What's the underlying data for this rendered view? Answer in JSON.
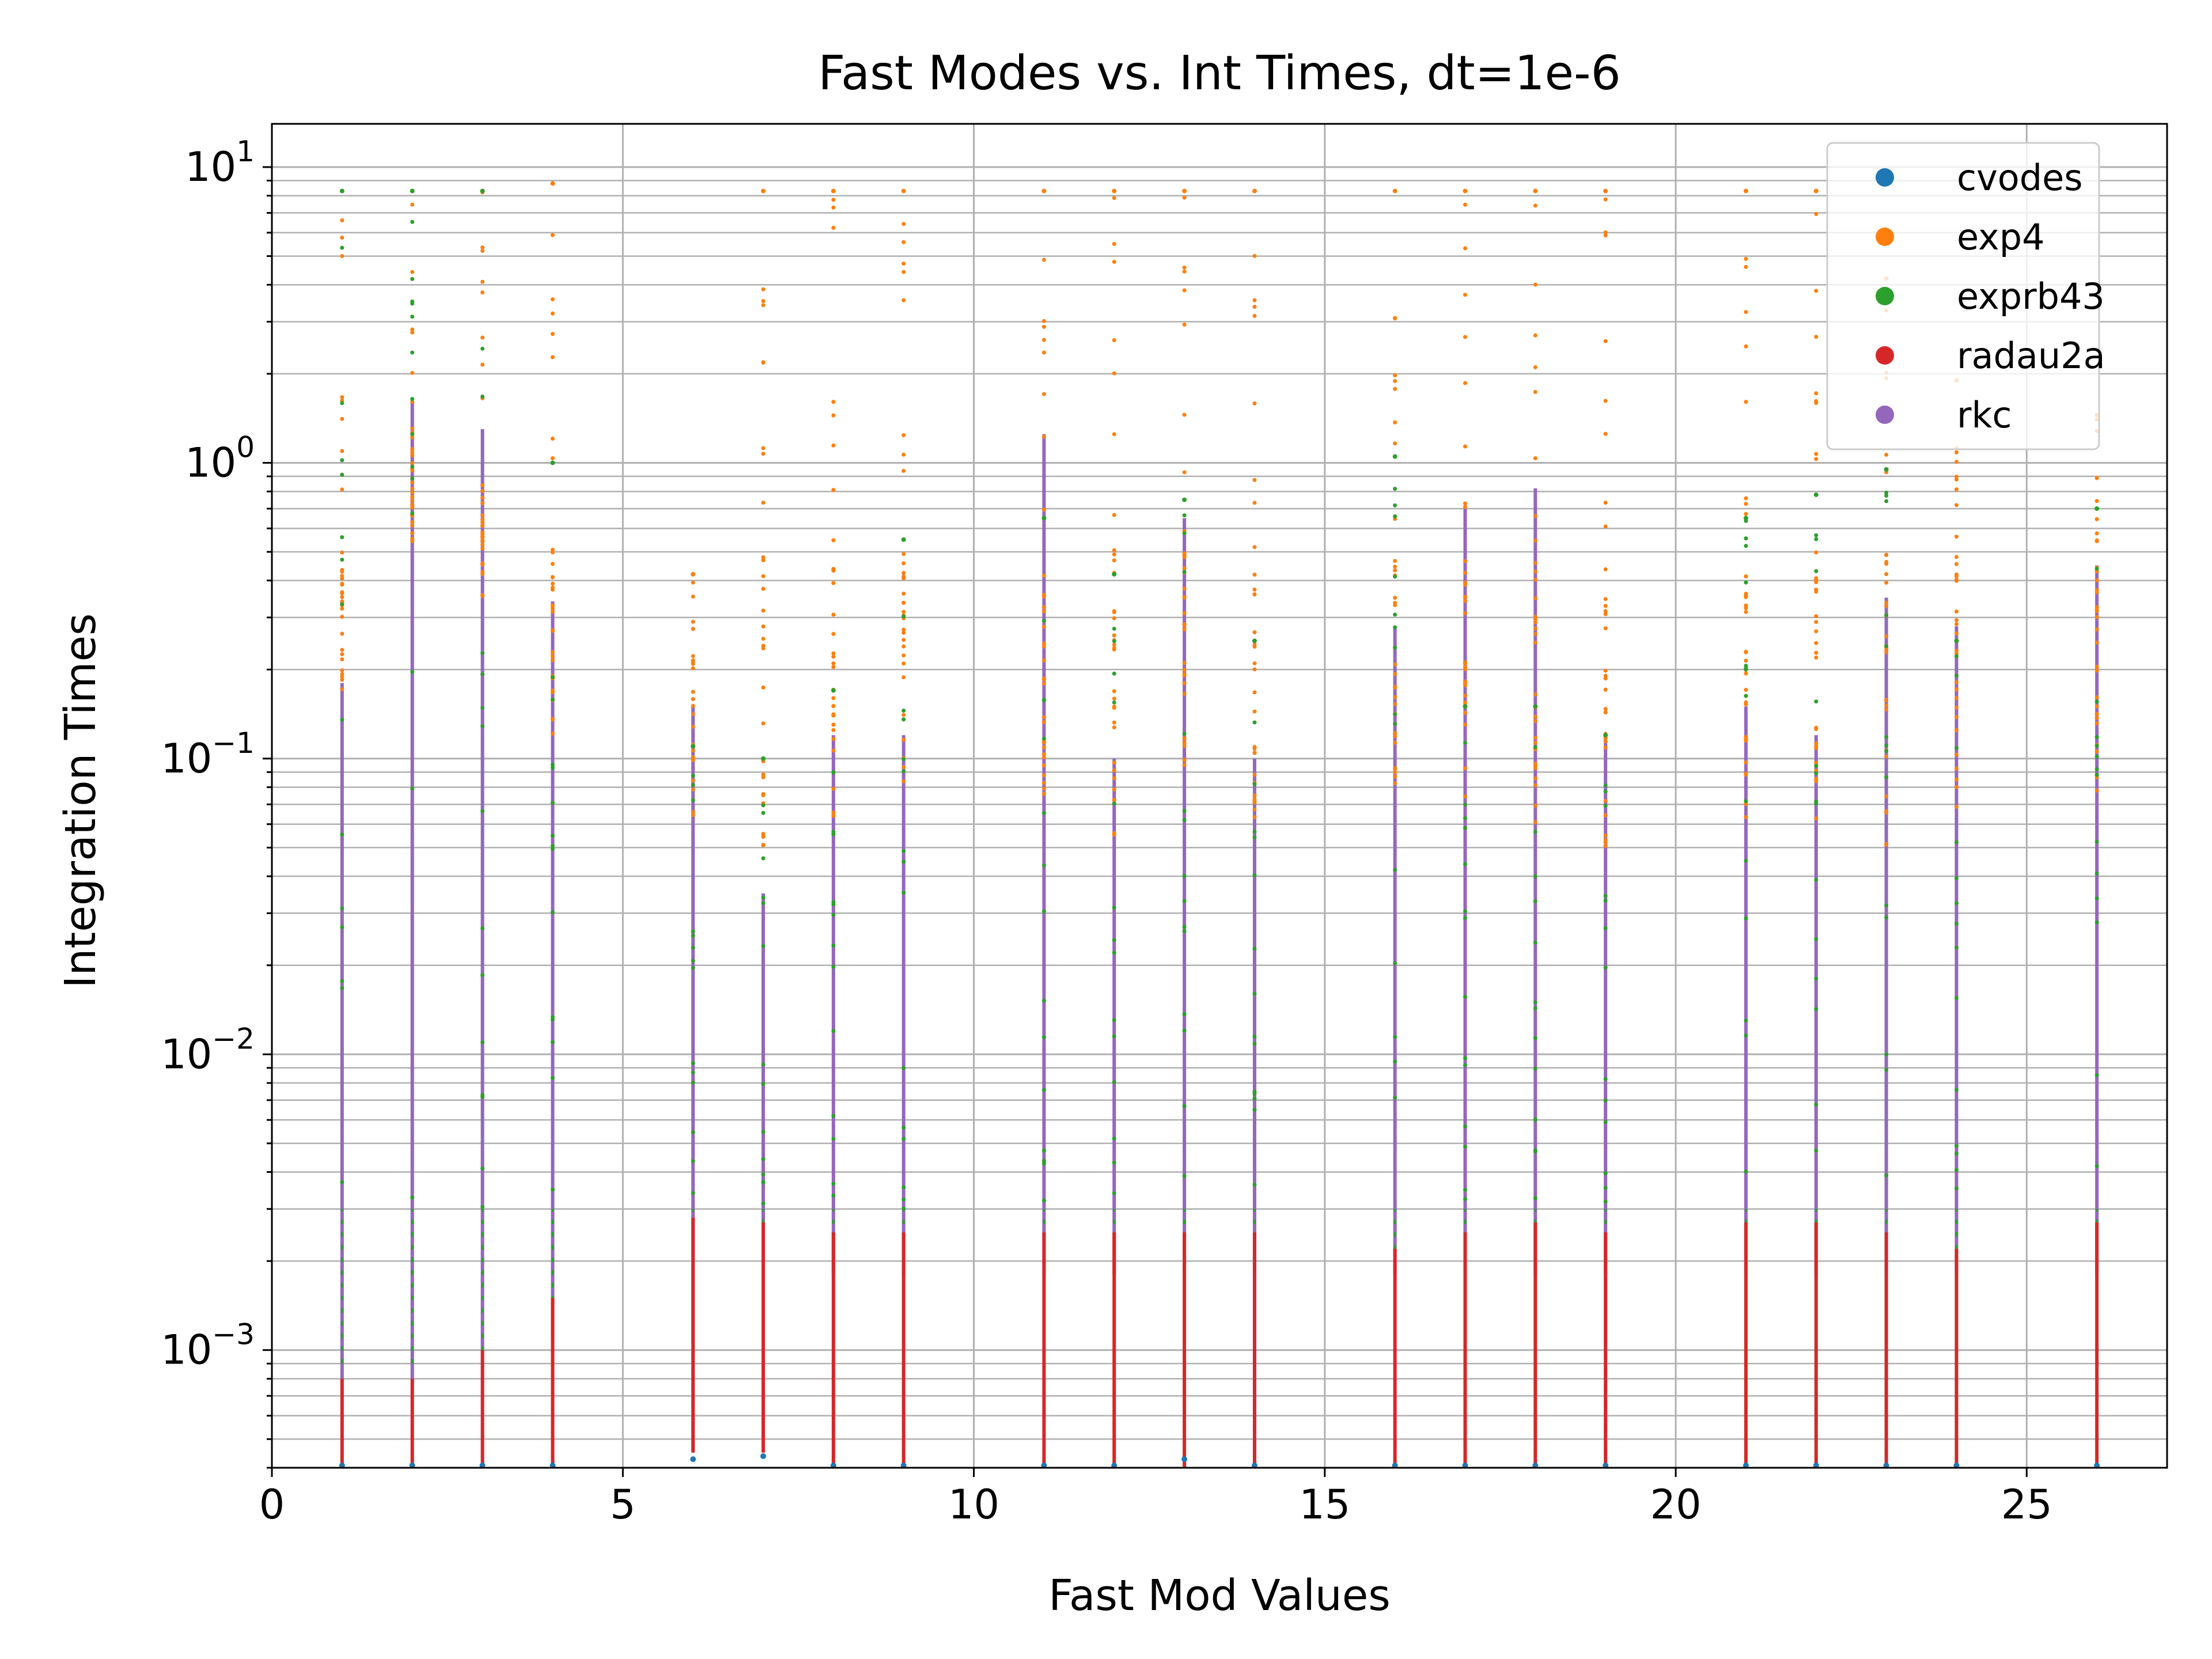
{
  "chart_data": {
    "type": "scatter",
    "title": "Fast Modes vs. Int Times, dt=1e-6",
    "xlabel": "Fast Mod Values",
    "ylabel": "Integration Times",
    "xlim": [
      0,
      27
    ],
    "ylim": [
      0.0004,
      14
    ],
    "yscale": "log",
    "grid": true,
    "legend_position": "top-right",
    "x_ticks": [
      0,
      5,
      10,
      15,
      20,
      25
    ],
    "x_tick_labels": [
      "0",
      "5",
      "10",
      "15",
      "20",
      "25"
    ],
    "y_ticks": [
      0.001,
      0.01,
      0.1,
      1,
      10
    ],
    "y_tick_labels": [
      {
        "base": "10",
        "exp": "−3"
      },
      {
        "base": "10",
        "exp": "−2"
      },
      {
        "base": "10",
        "exp": "−1"
      },
      {
        "base": "10",
        "exp": "0"
      },
      {
        "base": "10",
        "exp": "1"
      }
    ],
    "x_values": [
      1,
      2,
      3,
      4,
      6,
      7,
      8,
      9,
      11,
      12,
      13,
      14,
      16,
      17,
      18,
      19,
      21,
      22,
      23,
      24,
      26
    ],
    "series": [
      {
        "name": "cvodes",
        "color": "#1f77b4",
        "min": [
          0.0004,
          0.0004,
          0.0004,
          0.0004,
          0.00042,
          0.00043,
          0.0004,
          0.0004,
          0.0004,
          0.0004,
          0.00042,
          0.0004,
          0.0004,
          0.0004,
          0.0004,
          0.0004,
          0.0004,
          0.0004,
          0.0004,
          0.0004,
          0.0004
        ],
        "max": [
          0.00045,
          0.00045,
          0.00045,
          0.00045,
          0.00043,
          0.00044,
          0.00045,
          0.00045,
          0.00045,
          0.00045,
          0.00043,
          0.00045,
          0.00045,
          0.00045,
          0.00045,
          0.00045,
          0.00045,
          0.00045,
          0.00045,
          0.00045,
          0.00045
        ]
      },
      {
        "name": "exp4",
        "color": "#ff7f0e",
        "min": [
          0.15,
          0.5,
          0.35,
          0.12,
          0.05,
          0.04,
          0.06,
          0.08,
          0.07,
          0.05,
          0.09,
          0.06,
          0.08,
          0.07,
          0.06,
          0.05,
          0.06,
          0.06,
          0.05,
          0.06,
          0.07
        ],
        "max": [
          8.3,
          8.3,
          8.3,
          8.8,
          0.42,
          8.3,
          8.3,
          8.3,
          8.3,
          8.3,
          8.3,
          8.3,
          8.3,
          8.3,
          8.3,
          8.3,
          8.3,
          8.3,
          4.2,
          1.9,
          1.45
        ]
      },
      {
        "name": "exprb43",
        "color": "#2ca02c",
        "min": [
          0.0009,
          0.0009,
          0.0009,
          0.0009,
          0.0009,
          0.0009,
          0.0009,
          0.0009,
          0.0009,
          0.0009,
          0.0009,
          0.0009,
          0.0009,
          0.0009,
          0.0009,
          0.0009,
          0.0009,
          0.0009,
          0.0009,
          0.0009,
          0.0009
        ],
        "max": [
          8.3,
          8.3,
          8.3,
          1.0,
          0.11,
          0.1,
          0.17,
          0.55,
          0.65,
          0.42,
          0.75,
          0.25,
          1.05,
          0.15,
          0.15,
          0.12,
          0.65,
          0.78,
          0.95,
          0.25,
          0.7
        ]
      },
      {
        "name": "radau2a",
        "color": "#d62728",
        "min": [
          0.0004,
          0.0004,
          0.0004,
          0.0004,
          0.00045,
          0.00045,
          0.0004,
          0.0004,
          0.0004,
          0.0004,
          0.0004,
          0.0004,
          0.0004,
          0.0004,
          0.0004,
          0.0004,
          0.0004,
          0.0004,
          0.0004,
          0.0004,
          0.0004
        ],
        "max": [
          0.0008,
          0.0008,
          0.001,
          0.0015,
          0.0028,
          0.0027,
          0.0025,
          0.0025,
          0.0025,
          0.0025,
          0.0025,
          0.0025,
          0.0022,
          0.0025,
          0.0027,
          0.0025,
          0.0027,
          0.0027,
          0.0025,
          0.0022,
          0.0027
        ]
      },
      {
        "name": "rkc",
        "color": "#9467bd",
        "min": [
          0.0008,
          0.0008,
          0.001,
          0.0011,
          0.002,
          0.002,
          0.0018,
          0.0018,
          0.0018,
          0.0018,
          0.0018,
          0.0018,
          0.0018,
          0.0018,
          0.0018,
          0.0018,
          0.0018,
          0.0018,
          0.0018,
          0.0018,
          0.0018
        ],
        "max": [
          0.18,
          1.6,
          1.3,
          0.34,
          0.15,
          0.035,
          0.12,
          0.12,
          1.25,
          0.1,
          0.65,
          0.1,
          0.28,
          0.7,
          0.82,
          0.12,
          0.15,
          0.12,
          0.35,
          0.28,
          0.45
        ]
      }
    ]
  }
}
